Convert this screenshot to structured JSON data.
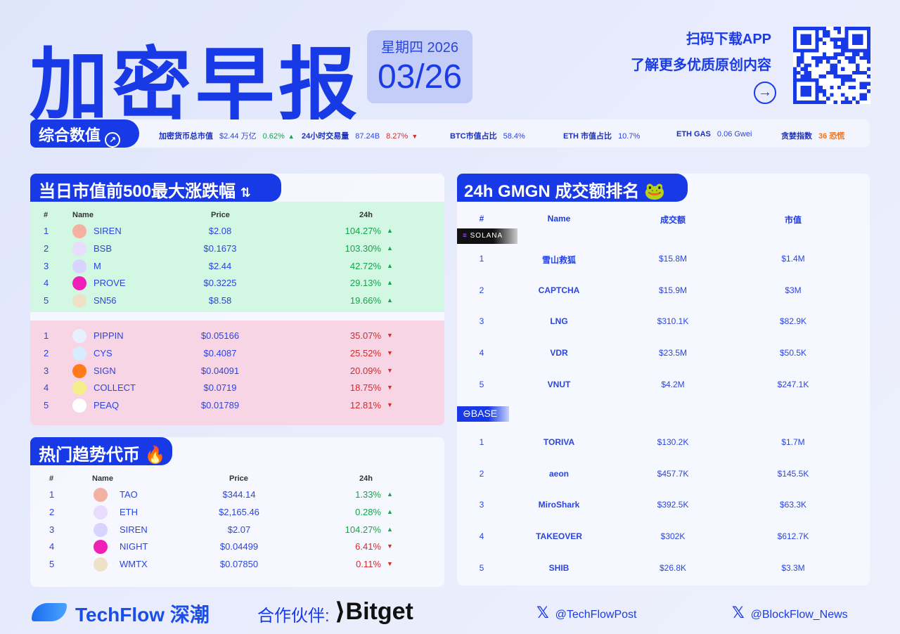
{
  "header": {
    "title": "加密早报",
    "weekday_year": "星期四 2026",
    "date": "03/26",
    "promo_line1": "扫码下载APP",
    "promo_line2": "了解更多优质原创内容"
  },
  "stats": {
    "label": "综合数值",
    "items": [
      {
        "k": "加密货币总市值",
        "v": "$2.44 万亿",
        "c": "0.62%",
        "dir": "up"
      },
      {
        "k": "24小时交易量",
        "v": "87.24B",
        "c": "8.27%",
        "dir": "down"
      },
      {
        "k": "BTC市值占比",
        "v": "58.4%"
      },
      {
        "k": "ETH 市值占比",
        "v": "10.7%"
      },
      {
        "k": "ETH GAS",
        "v": "0.06 Gwei"
      },
      {
        "k": "贪婪指数",
        "v": "36 恐慌"
      }
    ]
  },
  "movers": {
    "title": "当日市值前500最大涨跌幅",
    "headers": [
      "#",
      "Name",
      "Price",
      "24h"
    ],
    "gainers": [
      [
        "1",
        "SIREN",
        "$2.08",
        "104.27%"
      ],
      [
        "2",
        "BSB",
        "$0.1673",
        "103.30%"
      ],
      [
        "3",
        "M",
        "$2.44",
        "42.72%"
      ],
      [
        "4",
        "PROVE",
        "$0.3225",
        "29.13%"
      ],
      [
        "5",
        "SN56",
        "$8.58",
        "19.66%"
      ]
    ],
    "losers": [
      [
        "1",
        "PIPPIN",
        "$0.05166",
        "35.07%"
      ],
      [
        "2",
        "CYS",
        "$0.4087",
        "25.52%"
      ],
      [
        "3",
        "SIGN",
        "$0.04091",
        "20.09%"
      ],
      [
        "4",
        "COLLECT",
        "$0.0719",
        "18.75%"
      ],
      [
        "5",
        "PEAQ",
        "$0.01789",
        "12.81%"
      ]
    ]
  },
  "trending": {
    "title": "热门趋势代币",
    "headers": [
      "#",
      "Name",
      "Price",
      "24h"
    ],
    "rows": [
      [
        "1",
        "TAO",
        "$344.14",
        "1.33%",
        "up"
      ],
      [
        "2",
        "ETH",
        "$2,165.46",
        "0.28%",
        "up"
      ],
      [
        "3",
        "SIREN",
        "$2.07",
        "104.27%",
        "up"
      ],
      [
        "4",
        "NIGHT",
        "$0.04499",
        "6.41%",
        "down"
      ],
      [
        "5",
        "WMTX",
        "$0.07850",
        "0.11%",
        "down"
      ]
    ]
  },
  "gmgn": {
    "title": "24h GMGN 成交额排名",
    "headers": [
      "#",
      "Name",
      "成交额",
      "市值"
    ],
    "solana_label": "SOLANA",
    "base_label": "BASE",
    "solana": [
      [
        "1",
        "雪山救狐",
        "$15.8M",
        "$1.4M"
      ],
      [
        "2",
        "CAPTCHA",
        "$15.9M",
        "$3M"
      ],
      [
        "3",
        "LNG",
        "$310.1K",
        "$82.9K"
      ],
      [
        "4",
        "VDR",
        "$23.5M",
        "$50.5K"
      ],
      [
        "5",
        "VNUT",
        "$4.2M",
        "$247.1K"
      ]
    ],
    "base": [
      [
        "1",
        "TORIVA",
        "$130.2K",
        "$1.7M"
      ],
      [
        "2",
        "aeon",
        "$457.7K",
        "$145.5K"
      ],
      [
        "3",
        "MiroShark",
        "$392.5K",
        "$63.3K"
      ],
      [
        "4",
        "TAKEOVER",
        "$302K",
        "$612.7K"
      ],
      [
        "5",
        "SHIB",
        "$26.8K",
        "$3.3M"
      ]
    ]
  },
  "footer": {
    "brand": "TechFlow 深潮",
    "partner_label": "合作伙伴:",
    "partner": "Bitget",
    "x1": "@TechFlowPost",
    "x2": "@BlockFlow_News"
  },
  "colors": {
    "brand": "#1739e6",
    "up": "#17a34a",
    "down": "#d42a2a",
    "gain_bg": "#d2f7e3",
    "loss_bg": "#f8d5e5"
  }
}
